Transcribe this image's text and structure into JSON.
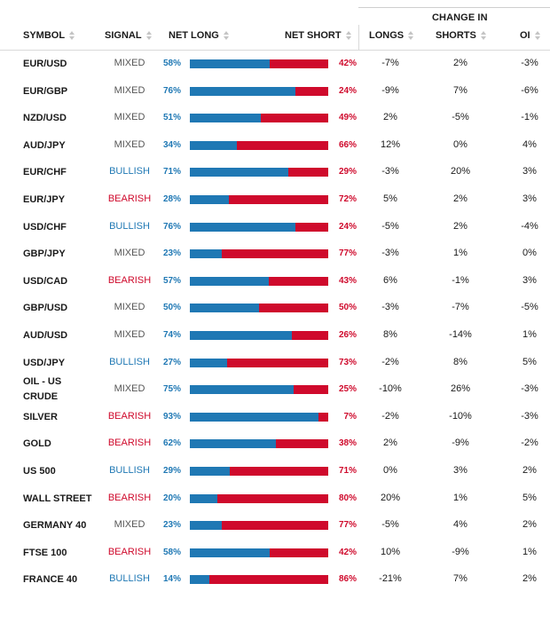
{
  "table": {
    "group_header": "CHANGE IN",
    "columns": {
      "symbol": "SYMBOL",
      "signal": "SIGNAL",
      "net_long": "NET LONG",
      "net_short": "NET SHORT",
      "longs": "LONGS",
      "shorts": "SHORTS",
      "oi": "OI"
    },
    "colors": {
      "long": "#1f78b4",
      "short": "#cf0a2c",
      "mixed": "#555555"
    },
    "rows": [
      {
        "symbol": "EUR/USD",
        "signal": "MIXED",
        "net_long": "58%",
        "net_short": "42%",
        "long_fraction": 0.58,
        "longs": "-7%",
        "shorts": "2%",
        "oi": "-3%"
      },
      {
        "symbol": "EUR/GBP",
        "signal": "MIXED",
        "net_long": "76%",
        "net_short": "24%",
        "long_fraction": 0.76,
        "longs": "-9%",
        "shorts": "7%",
        "oi": "-6%"
      },
      {
        "symbol": "NZD/USD",
        "signal": "MIXED",
        "net_long": "51%",
        "net_short": "49%",
        "long_fraction": 0.51,
        "longs": "2%",
        "shorts": "-5%",
        "oi": "-1%"
      },
      {
        "symbol": "AUD/JPY",
        "signal": "MIXED",
        "net_long": "34%",
        "net_short": "66%",
        "long_fraction": 0.34,
        "longs": "12%",
        "shorts": "0%",
        "oi": "4%"
      },
      {
        "symbol": "EUR/CHF",
        "signal": "BULLISH",
        "net_long": "71%",
        "net_short": "29%",
        "long_fraction": 0.71,
        "longs": "-3%",
        "shorts": "20%",
        "oi": "3%"
      },
      {
        "symbol": "EUR/JPY",
        "signal": "BEARISH",
        "net_long": "28%",
        "net_short": "72%",
        "long_fraction": 0.28,
        "longs": "5%",
        "shorts": "2%",
        "oi": "3%"
      },
      {
        "symbol": "USD/CHF",
        "signal": "BULLISH",
        "net_long": "76%",
        "net_short": "24%",
        "long_fraction": 0.76,
        "longs": "-5%",
        "shorts": "2%",
        "oi": "-4%"
      },
      {
        "symbol": "GBP/JPY",
        "signal": "MIXED",
        "net_long": "23%",
        "net_short": "77%",
        "long_fraction": 0.23,
        "longs": "-3%",
        "shorts": "1%",
        "oi": "0%"
      },
      {
        "symbol": "USD/CAD",
        "signal": "BEARISH",
        "net_long": "57%",
        "net_short": "43%",
        "long_fraction": 0.57,
        "longs": "6%",
        "shorts": "-1%",
        "oi": "3%"
      },
      {
        "symbol": "GBP/USD",
        "signal": "MIXED",
        "net_long": "50%",
        "net_short": "50%",
        "long_fraction": 0.5,
        "longs": "-3%",
        "shorts": "-7%",
        "oi": "-5%"
      },
      {
        "symbol": "AUD/USD",
        "signal": "MIXED",
        "net_long": "74%",
        "net_short": "26%",
        "long_fraction": 0.74,
        "longs": "8%",
        "shorts": "-14%",
        "oi": "1%"
      },
      {
        "symbol": "USD/JPY",
        "signal": "BULLISH",
        "net_long": "27%",
        "net_short": "73%",
        "long_fraction": 0.27,
        "longs": "-2%",
        "shorts": "8%",
        "oi": "5%"
      },
      {
        "symbol": "OIL - US CRUDE",
        "signal": "MIXED",
        "net_long": "75%",
        "net_short": "25%",
        "long_fraction": 0.75,
        "longs": "-10%",
        "shorts": "26%",
        "oi": "-3%"
      },
      {
        "symbol": "SILVER",
        "signal": "BEARISH",
        "net_long": "93%",
        "net_short": "7%",
        "long_fraction": 0.93,
        "longs": "-2%",
        "shorts": "-10%",
        "oi": "-3%"
      },
      {
        "symbol": "GOLD",
        "signal": "BEARISH",
        "net_long": "62%",
        "net_short": "38%",
        "long_fraction": 0.62,
        "longs": "2%",
        "shorts": "-9%",
        "oi": "-2%"
      },
      {
        "symbol": "US 500",
        "signal": "BULLISH",
        "net_long": "29%",
        "net_short": "71%",
        "long_fraction": 0.29,
        "longs": "0%",
        "shorts": "3%",
        "oi": "2%"
      },
      {
        "symbol": "WALL STREET",
        "signal": "BEARISH",
        "net_long": "20%",
        "net_short": "80%",
        "long_fraction": 0.2,
        "longs": "20%",
        "shorts": "1%",
        "oi": "5%"
      },
      {
        "symbol": "GERMANY 40",
        "signal": "MIXED",
        "net_long": "23%",
        "net_short": "77%",
        "long_fraction": 0.23,
        "longs": "-5%",
        "shorts": "4%",
        "oi": "2%"
      },
      {
        "symbol": "FTSE 100",
        "signal": "BEARISH",
        "net_long": "58%",
        "net_short": "42%",
        "long_fraction": 0.58,
        "longs": "10%",
        "shorts": "-9%",
        "oi": "1%"
      },
      {
        "symbol": "FRANCE 40",
        "signal": "BULLISH",
        "net_long": "14%",
        "net_short": "86%",
        "long_fraction": 0.14,
        "longs": "-21%",
        "shorts": "7%",
        "oi": "2%"
      }
    ]
  }
}
